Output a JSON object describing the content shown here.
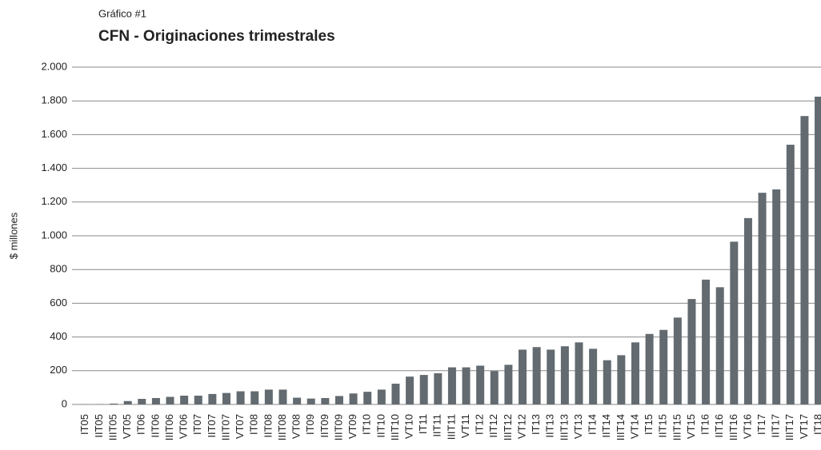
{
  "chart_data": {
    "type": "bar",
    "subtitle": "Gráfico #1",
    "title": "CFN - Originaciones trimestrales",
    "y_label": "$ millones",
    "categories": [
      "IT05",
      "IIT05",
      "IIIT05",
      "VT05",
      "IT06",
      "IIT06",
      "IIIT06",
      "VT06",
      "IT07",
      "IIT07",
      "IIIT07",
      "VT07",
      "IT08",
      "IIT08",
      "IIIT08",
      "VT08",
      "IT09",
      "IIT09",
      "IIIT09",
      "VT09",
      "IT10",
      "IIT10",
      "IIIT10",
      "VT10",
      "IT11",
      "IIT11",
      "IIIT11",
      "VT11",
      "IT12",
      "IIT12",
      "IIIT12",
      "VT12",
      "IT13",
      "IIT13",
      "IIIT13",
      "VT13",
      "IT14",
      "IIT14",
      "IIIT14",
      "VT14",
      "IT15",
      "IIT15",
      "IIIT15",
      "VT15",
      "IT16",
      "IIT16",
      "IIIT16",
      "VT16",
      "IT17",
      "IIT17",
      "IIIT17",
      "VT17",
      "IT18"
    ],
    "values": [
      1,
      2,
      5,
      20,
      33,
      38,
      45,
      52,
      52,
      62,
      68,
      78,
      78,
      88,
      88,
      40,
      35,
      38,
      50,
      65,
      75,
      88,
      123,
      165,
      175,
      185,
      220,
      220,
      230,
      198,
      235,
      325,
      340,
      325,
      345,
      368,
      330,
      262,
      292,
      368,
      418,
      442,
      515,
      625,
      740,
      695,
      965,
      1105,
      1255,
      1275,
      1540,
      1710,
      1825
    ],
    "color": "#636b70",
    "ylim": [
      0,
      2000
    ],
    "yticks": [
      0,
      200,
      400,
      600,
      800,
      {
        "value": 1000,
        "label": "1.000"
      },
      {
        "value": 1200,
        "label": "1.200"
      },
      {
        "value": 1400,
        "label": "1.400"
      },
      {
        "value": 1600,
        "label": "1.600"
      },
      {
        "value": 1800,
        "label": "1.800"
      },
      {
        "value": 2000,
        "label": "2.000"
      }
    ],
    "grid": true
  }
}
